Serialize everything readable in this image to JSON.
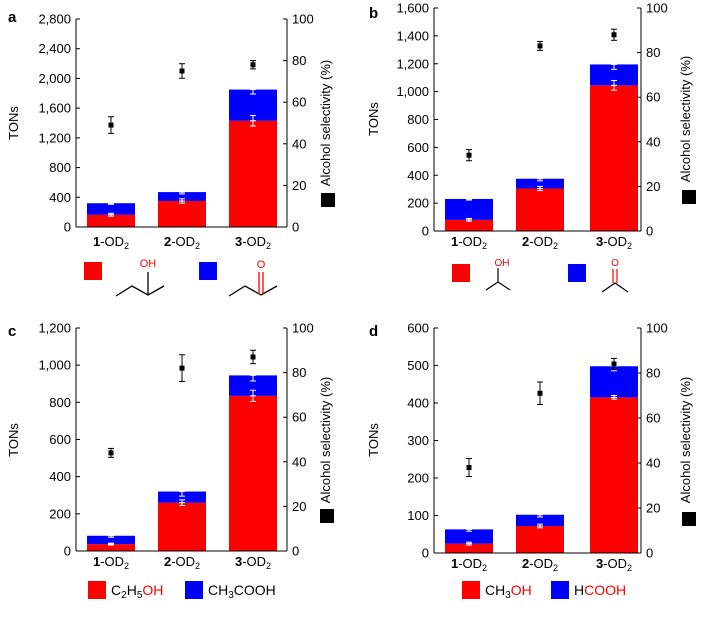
{
  "colors": {
    "red": "#ff0000",
    "blue": "#0000ff",
    "marker": "#000000"
  },
  "chart_data": [
    {
      "panel": "a",
      "type": "bar",
      "stacked": true,
      "categories": [
        {
          "num": "1",
          "mid": "-OD",
          "sub": "2"
        },
        {
          "num": "2",
          "mid": "-OD",
          "sub": "2"
        },
        {
          "num": "3",
          "mid": "-OD",
          "sub": "2"
        }
      ],
      "ylabel": "TONs",
      "y2label": "Alcohol selectivity (%)",
      "ylim": [
        0,
        2800
      ],
      "yticks": [
        0,
        400,
        800,
        1200,
        1600,
        2000,
        2400,
        2800
      ],
      "ytick_labels": [
        "0",
        "400",
        "800",
        "1,200",
        "1,600",
        "2,000",
        "2,400",
        "2,800"
      ],
      "y2lim": [
        0,
        100
      ],
      "y2ticks": [
        0,
        20,
        40,
        60,
        80,
        100
      ],
      "series": [
        {
          "name": "alcohol",
          "color": "red",
          "values": [
            165,
            350,
            1430
          ],
          "err": [
            20,
            30,
            70
          ]
        },
        {
          "name": "ketone",
          "color": "blue",
          "values": [
            155,
            120,
            420
          ],
          "err": [
            15,
            25,
            60
          ]
        }
      ],
      "selectivity": [
        49,
        75,
        78
      ],
      "selectivity_err": [
        4,
        3.5,
        2
      ],
      "legend": {
        "type": "structures",
        "alcohol_label": "OH",
        "ketone_label": "O"
      }
    },
    {
      "panel": "b",
      "type": "bar",
      "stacked": true,
      "categories": [
        {
          "num": "1",
          "mid": "-OD",
          "sub": "2"
        },
        {
          "num": "2",
          "mid": "-OD",
          "sub": "2"
        },
        {
          "num": "3",
          "mid": "-OD",
          "sub": "2"
        }
      ],
      "ylabel": "TONs",
      "y2label": "Alcohol selectivity (%)",
      "ylim": [
        0,
        1600
      ],
      "yticks": [
        0,
        200,
        400,
        600,
        800,
        1000,
        1200,
        1400,
        1600
      ],
      "ytick_labels": [
        "0",
        "200",
        "400",
        "600",
        "800",
        "1,000",
        "1,200",
        "1,400",
        "1,600"
      ],
      "y2lim": [
        0,
        100
      ],
      "y2ticks": [
        0,
        20,
        40,
        60,
        80,
        100
      ],
      "series": [
        {
          "name": "alcohol",
          "color": "red",
          "values": [
            80,
            305,
            1045
          ],
          "err": [
            10,
            15,
            35
          ]
        },
        {
          "name": "ketone",
          "color": "blue",
          "values": [
            150,
            70,
            150
          ],
          "err": [
            8,
            15,
            35
          ]
        }
      ],
      "selectivity": [
        34,
        83,
        88
      ],
      "selectivity_err": [
        2.5,
        2,
        2.5
      ],
      "legend": {
        "type": "structures",
        "alcohol_label": "OH",
        "ketone_label": "O"
      }
    },
    {
      "panel": "c",
      "type": "bar",
      "stacked": true,
      "categories": [
        {
          "num": "1",
          "mid": "-OD",
          "sub": "2"
        },
        {
          "num": "2",
          "mid": "-OD",
          "sub": "2"
        },
        {
          "num": "3",
          "mid": "-OD",
          "sub": "2"
        }
      ],
      "ylabel": "TONs",
      "y2label": "Alcohol selectivity (%)",
      "ylim": [
        0,
        1200
      ],
      "yticks": [
        0,
        200,
        400,
        600,
        800,
        1000,
        1200
      ],
      "ytick_labels": [
        "0",
        "200",
        "400",
        "600",
        "800",
        "1,000",
        "1,200"
      ],
      "y2lim": [
        0,
        100
      ],
      "y2ticks": [
        0,
        20,
        40,
        60,
        80,
        100
      ],
      "series": [
        {
          "name": "C2H5OH",
          "color": "red",
          "values": [
            37,
            260,
            835
          ],
          "err": [
            5,
            15,
            30
          ]
        },
        {
          "name": "CH3COOH",
          "color": "blue",
          "values": [
            45,
            60,
            110
          ],
          "err": [
            8,
            25,
            30
          ]
        }
      ],
      "selectivity": [
        44,
        82,
        87
      ],
      "selectivity_err": [
        2,
        6,
        3
      ],
      "legend": {
        "type": "formula",
        "items": [
          {
            "color": "red",
            "parts": [
              [
                "C",
                "n"
              ],
              [
                "2",
                "sub"
              ],
              [
                "H",
                "n"
              ],
              [
                "5",
                "sub"
              ],
              [
                "OH",
                "red"
              ]
            ]
          },
          {
            "color": "blue",
            "parts": [
              [
                "CH",
                "n"
              ],
              [
                "3",
                "sub"
              ],
              [
                "COOH",
                "n"
              ]
            ]
          }
        ]
      }
    },
    {
      "panel": "d",
      "type": "bar",
      "stacked": true,
      "categories": [
        {
          "num": "1",
          "mid": "-OD",
          "sub": "2"
        },
        {
          "num": "2",
          "mid": "-OD",
          "sub": "2"
        },
        {
          "num": "3",
          "mid": "-OD",
          "sub": "2"
        }
      ],
      "ylabel": "TONs",
      "y2label": "Alcohol selectivity (%)",
      "ylim": [
        0,
        600
      ],
      "yticks": [
        0,
        100,
        200,
        300,
        400,
        500,
        600
      ],
      "ytick_labels": [
        "0",
        "100",
        "200",
        "300",
        "400",
        "500",
        "600"
      ],
      "y2lim": [
        0,
        100
      ],
      "y2ticks": [
        0,
        20,
        40,
        60,
        80,
        100
      ],
      "series": [
        {
          "name": "CH3OH",
          "color": "red",
          "values": [
            25,
            72,
            415
          ],
          "err": [
            4,
            5,
            5
          ]
        },
        {
          "name": "HCOOH",
          "color": "blue",
          "values": [
            38,
            30,
            83
          ],
          "err": [
            5,
            6,
            12
          ]
        }
      ],
      "selectivity": [
        38,
        71,
        84
      ],
      "selectivity_err": [
        4,
        5,
        2.5
      ],
      "legend": {
        "type": "formula",
        "items": [
          {
            "color": "red",
            "parts": [
              [
                "CH",
                "n"
              ],
              [
                "3",
                "sub"
              ],
              [
                "OH",
                "red"
              ]
            ]
          },
          {
            "color": "blue",
            "parts": [
              [
                "H",
                "n"
              ],
              [
                "COOH",
                "red"
              ]
            ]
          }
        ]
      }
    }
  ]
}
